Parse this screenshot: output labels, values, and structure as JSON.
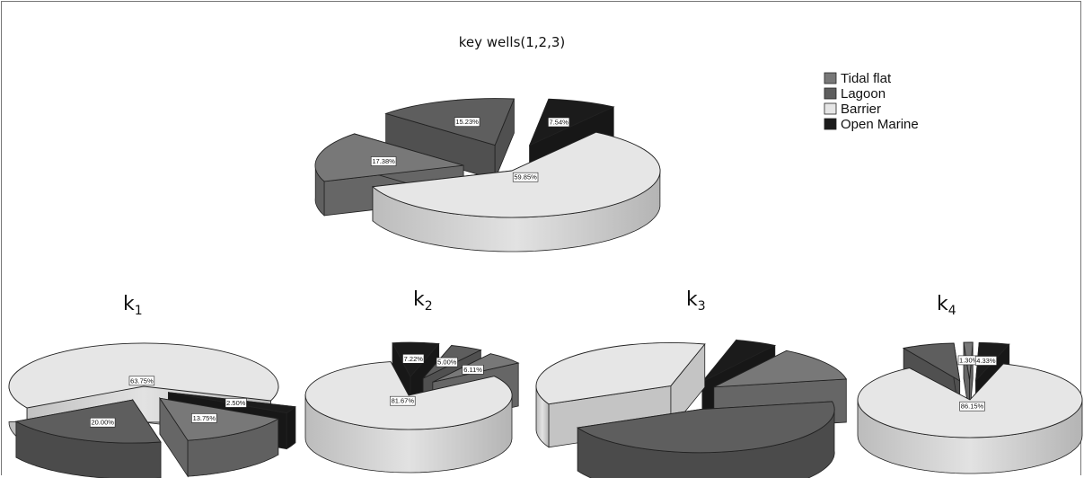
{
  "colors": {
    "Tidal flat": "#787878",
    "Lagoon": "#5e5e5e",
    "Barrier": "#e6e6e6",
    "Open Marine": "#1b1b1b"
  },
  "legend": {
    "items": [
      "Tidal flat",
      "Lagoon",
      "Barrier",
      "Open Marine"
    ]
  },
  "chart_data": [
    {
      "type": "pie",
      "title": "key wells(1,2,3)",
      "style": "3d-exploded",
      "slices": [
        {
          "category": "Tidal flat",
          "value": 17.38,
          "label": "17.38%"
        },
        {
          "category": "Lagoon",
          "value": 15.23,
          "label": "15.23%"
        },
        {
          "category": "Open Marine",
          "value": 7.54,
          "label": "7.54%"
        },
        {
          "category": "Barrier",
          "value": 59.85,
          "label": "59.85%"
        }
      ]
    },
    {
      "type": "pie",
      "title": "k",
      "subscript": "1",
      "style": "3d-exploded",
      "slices": [
        {
          "category": "Barrier",
          "value": 63.75,
          "label": "63.75%"
        },
        {
          "category": "Open Marine",
          "value": 2.5,
          "label": "2.50%"
        },
        {
          "category": "Tidal flat",
          "value": 13.75,
          "label": "13.75%"
        },
        {
          "category": "Lagoon",
          "value": 20.0,
          "label": "20.00%"
        }
      ]
    },
    {
      "type": "pie",
      "title": "k",
      "subscript": "2",
      "style": "3d-exploded",
      "slices": [
        {
          "category": "Open Marine",
          "value": 7.22,
          "label": "7.22%"
        },
        {
          "category": "Lagoon",
          "value": 5.0,
          "label": "5.00%"
        },
        {
          "category": "Tidal flat",
          "value": 6.11,
          "label": "6.11%"
        },
        {
          "category": "Barrier",
          "value": 81.67,
          "label": "81.67%"
        }
      ]
    },
    {
      "type": "pie",
      "title": "k",
      "subscript": "3",
      "style": "3d-exploded",
      "slices": [
        {
          "category": "Barrier",
          "value": null,
          "label": ""
        },
        {
          "category": "Open Marine",
          "value": null,
          "label": ""
        },
        {
          "category": "Tidal flat",
          "value": null,
          "label": ""
        },
        {
          "category": "Lagoon",
          "value": null,
          "label": ""
        }
      ]
    },
    {
      "type": "pie",
      "title": "k",
      "subscript": "4",
      "style": "3d-exploded",
      "slices": [
        {
          "category": "Lagoon",
          "value": null,
          "label": ""
        },
        {
          "category": "Tidal flat",
          "value": 1.3,
          "label": "1.30%"
        },
        {
          "category": "Open Marine",
          "value": 4.33,
          "label": "4.33%"
        },
        {
          "category": "Barrier",
          "value": 86.15,
          "label": "86.15%"
        }
      ]
    }
  ]
}
